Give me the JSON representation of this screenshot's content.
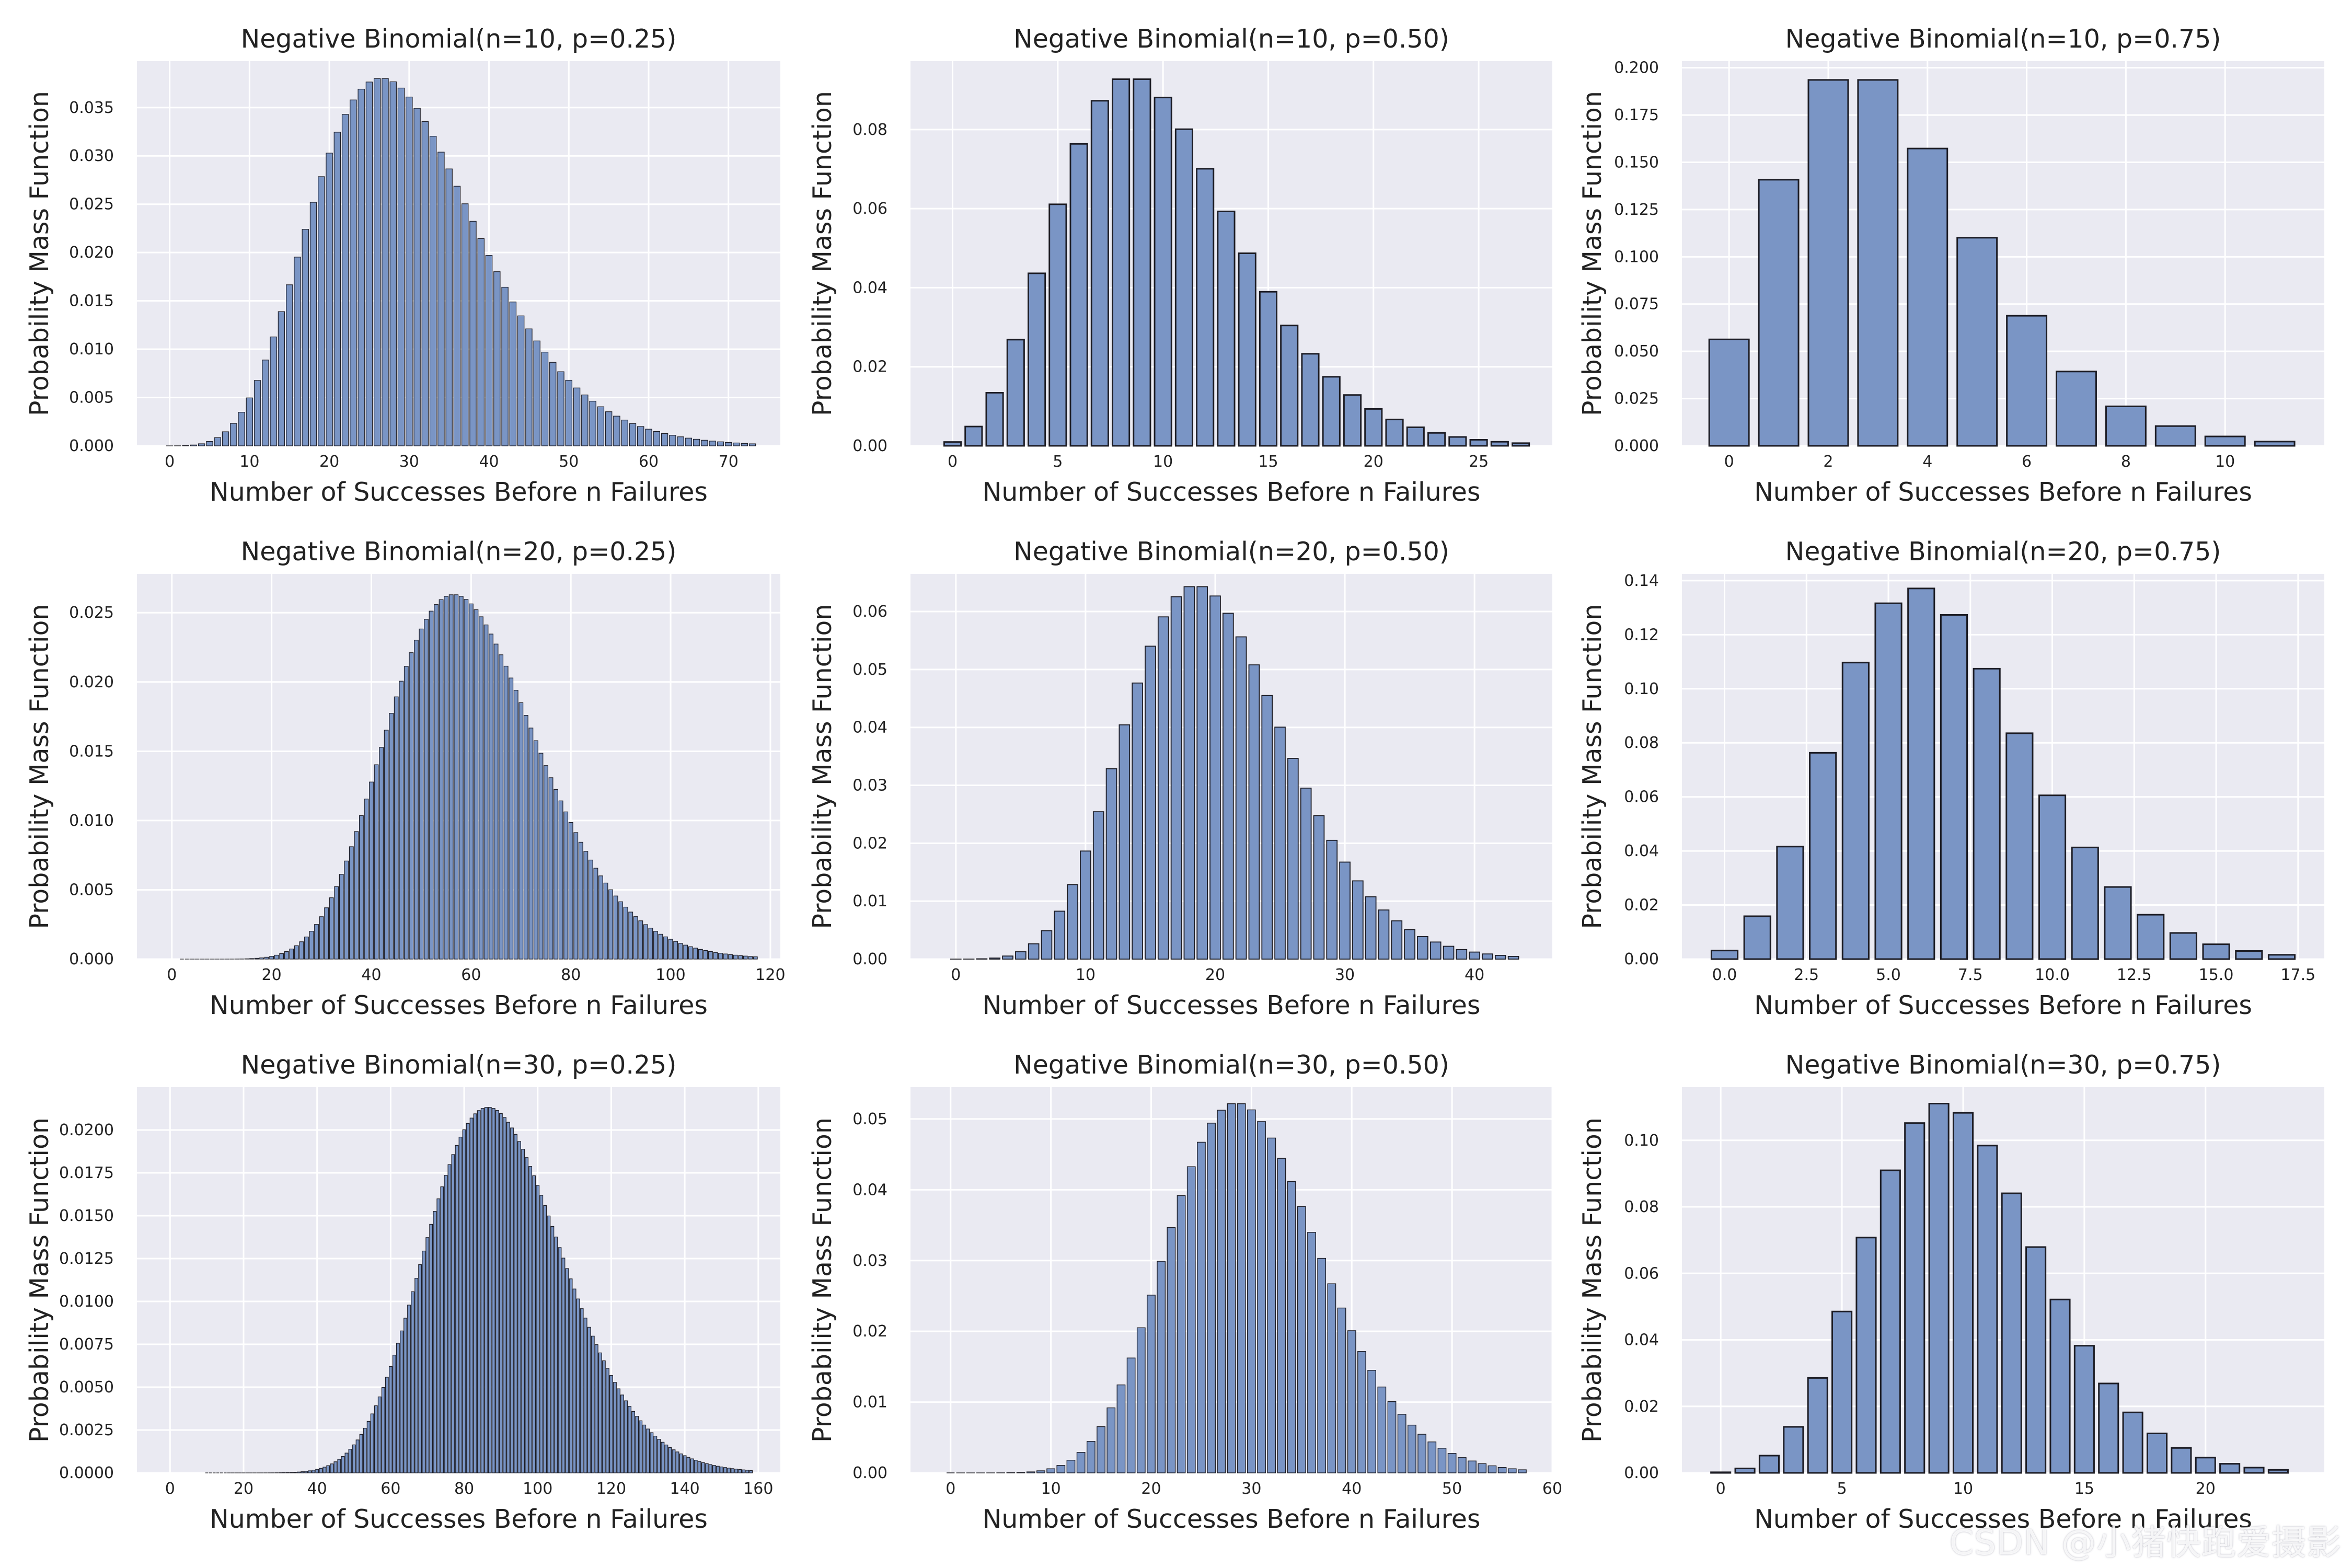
{
  "figure": {
    "watermark": "CSDN @小猪快跑爱摄影",
    "colors": {
      "background": "#eaeaf2",
      "grid": "#ffffff",
      "bar_fill": "#7793c4",
      "bar_edge": "#1c1c24"
    }
  },
  "chart_data": [
    {
      "type": "bar",
      "distribution": "negative_binomial",
      "n": 10,
      "p": 0.25,
      "kmax": 73,
      "title": "Negative Binomial(n=10, p=0.25)",
      "xlabel": "Number of Successes Before n Failures",
      "ylabel": "Probability Mass Function",
      "xlim": [
        -4.1,
        76.5
      ],
      "ylim": [
        0,
        0.0398
      ],
      "xticks": [
        0,
        10,
        20,
        30,
        40,
        50,
        60,
        70
      ],
      "xtick_labels": [
        "0",
        "10",
        "20",
        "30",
        "40",
        "50",
        "60",
        "70"
      ],
      "yticks": [
        0,
        0.005,
        0.01,
        0.015,
        0.02,
        0.025,
        0.03,
        0.035
      ],
      "ytick_labels": [
        "0.000",
        "0.005",
        "0.010",
        "0.015",
        "0.020",
        "0.025",
        "0.030",
        "0.035"
      ]
    },
    {
      "type": "bar",
      "distribution": "negative_binomial",
      "n": 10,
      "p": 0.5,
      "kmax": 27,
      "title": "Negative Binomial(n=10, p=0.50)",
      "xlabel": "Number of Successes Before n Failures",
      "ylabel": "Probability Mass Function",
      "xlim": [
        -2.0,
        28.5
      ],
      "ylim": [
        0,
        0.0973
      ],
      "xticks": [
        0,
        5,
        10,
        15,
        20,
        25
      ],
      "xtick_labels": [
        "0",
        "5",
        "10",
        "15",
        "20",
        "25"
      ],
      "yticks": [
        0,
        0.02,
        0.04,
        0.06,
        0.08
      ],
      "ytick_labels": [
        "0.00",
        "0.02",
        "0.04",
        "0.06",
        "0.08"
      ]
    },
    {
      "type": "bar",
      "distribution": "negative_binomial",
      "n": 10,
      "p": 0.75,
      "kmax": 11,
      "title": "Negative Binomial(n=10, p=0.75)",
      "xlabel": "Number of Successes Before n Failures",
      "ylabel": "Probability Mass Function",
      "xlim": [
        -0.95,
        12.0
      ],
      "ylim": [
        0,
        0.2035
      ],
      "xticks": [
        0,
        2,
        4,
        6,
        8,
        10
      ],
      "xtick_labels": [
        "0",
        "2",
        "4",
        "6",
        "8",
        "10"
      ],
      "yticks": [
        0,
        0.025,
        0.05,
        0.075,
        0.1,
        0.125,
        0.15,
        0.175,
        0.2
      ],
      "ytick_labels": [
        "0.000",
        "0.025",
        "0.050",
        "0.075",
        "0.100",
        "0.125",
        "0.150",
        "0.175",
        "0.200"
      ]
    },
    {
      "type": "bar",
      "distribution": "negative_binomial",
      "n": 20,
      "p": 0.25,
      "kmax": 117,
      "title": "Negative Binomial(n=20, p=0.25)",
      "xlabel": "Number of Successes Before n Failures",
      "ylabel": "Probability Mass Function",
      "xlim": [
        -7.0,
        122.0
      ],
      "ylim": [
        0,
        0.0278
      ],
      "xticks": [
        0,
        20,
        40,
        60,
        80,
        100,
        120
      ],
      "xtick_labels": [
        "0",
        "20",
        "40",
        "60",
        "80",
        "100",
        "120"
      ],
      "yticks": [
        0,
        0.005,
        0.01,
        0.015,
        0.02,
        0.025
      ],
      "ytick_labels": [
        "0.000",
        "0.005",
        "0.010",
        "0.015",
        "0.020",
        "0.025"
      ]
    },
    {
      "type": "bar",
      "distribution": "negative_binomial",
      "n": 20,
      "p": 0.5,
      "kmax": 43,
      "title": "Negative Binomial(n=20, p=0.50)",
      "xlabel": "Number of Successes Before n Failures",
      "ylabel": "Probability Mass Function",
      "xlim": [
        -3.5,
        46.0
      ],
      "ylim": [
        0,
        0.0665
      ],
      "xticks": [
        0,
        10,
        20,
        30,
        40
      ],
      "xtick_labels": [
        "0",
        "10",
        "20",
        "30",
        "40"
      ],
      "yticks": [
        0,
        0.01,
        0.02,
        0.03,
        0.04,
        0.05,
        0.06
      ],
      "ytick_labels": [
        "0.00",
        "0.01",
        "0.02",
        "0.03",
        "0.04",
        "0.05",
        "0.06"
      ]
    },
    {
      "type": "bar",
      "distribution": "negative_binomial",
      "n": 20,
      "p": 0.75,
      "kmax": 17,
      "title": "Negative Binomial(n=20, p=0.75)",
      "xlabel": "Number of Successes Before n Failures",
      "ylabel": "Probability Mass Function",
      "xlim": [
        -1.3,
        18.3
      ],
      "ylim": [
        0,
        0.1425
      ],
      "xticks": [
        0,
        2.5,
        5,
        7.5,
        10,
        12.5,
        15,
        17.5
      ],
      "xtick_labels": [
        "0.0",
        "2.5",
        "5.0",
        "7.5",
        "10.0",
        "12.5",
        "15.0",
        "17.5"
      ],
      "yticks": [
        0,
        0.02,
        0.04,
        0.06,
        0.08,
        0.1,
        0.12,
        0.14
      ],
      "ytick_labels": [
        "0.00",
        "0.02",
        "0.04",
        "0.06",
        "0.08",
        "0.10",
        "0.12",
        "0.14"
      ]
    },
    {
      "type": "bar",
      "distribution": "negative_binomial",
      "n": 30,
      "p": 0.25,
      "kmax": 158,
      "title": "Negative Binomial(n=30, p=0.25)",
      "xlabel": "Number of Successes Before n Failures",
      "ylabel": "Probability Mass Function",
      "xlim": [
        -9.0,
        166.0
      ],
      "ylim": [
        0,
        0.0225
      ],
      "xticks": [
        0,
        20,
        40,
        60,
        80,
        100,
        120,
        140,
        160
      ],
      "xtick_labels": [
        "0",
        "20",
        "40",
        "60",
        "80",
        "100",
        "120",
        "140",
        "160"
      ],
      "yticks": [
        0,
        0.0025,
        0.005,
        0.0075,
        0.01,
        0.0125,
        0.015,
        0.0175,
        0.02
      ],
      "ytick_labels": [
        "0.0000",
        "0.0025",
        "0.0050",
        "0.0075",
        "0.0100",
        "0.0125",
        "0.0150",
        "0.0175",
        "0.0200"
      ]
    },
    {
      "type": "bar",
      "distribution": "negative_binomial",
      "n": 30,
      "p": 0.5,
      "kmax": 57,
      "title": "Negative Binomial(n=30, p=0.50)",
      "xlabel": "Number of Successes Before n Failures",
      "ylabel": "Probability Mass Function",
      "xlim": [
        -4.0,
        60.0
      ],
      "ylim": [
        0,
        0.0545
      ],
      "xticks": [
        0,
        10,
        20,
        30,
        40,
        50,
        60
      ],
      "xtick_labels": [
        "0",
        "10",
        "20",
        "30",
        "40",
        "50",
        "60"
      ],
      "yticks": [
        0,
        0.01,
        0.02,
        0.03,
        0.04,
        0.05
      ],
      "ytick_labels": [
        "0.00",
        "0.01",
        "0.02",
        "0.03",
        "0.04",
        "0.05"
      ]
    },
    {
      "type": "bar",
      "distribution": "negative_binomial",
      "n": 30,
      "p": 0.75,
      "kmax": 23,
      "title": "Negative Binomial(n=30, p=0.75)",
      "xlabel": "Number of Successes Before n Failures",
      "ylabel": "Probability Mass Function",
      "xlim": [
        -1.6,
        24.9
      ],
      "ylim": [
        0,
        0.116
      ],
      "xticks": [
        0,
        5,
        10,
        15,
        20
      ],
      "xtick_labels": [
        "0",
        "5",
        "10",
        "15",
        "20"
      ],
      "yticks": [
        0,
        0.02,
        0.04,
        0.06,
        0.08,
        0.1
      ],
      "ytick_labels": [
        "0.00",
        "0.02",
        "0.04",
        "0.06",
        "0.08",
        "0.10"
      ]
    }
  ]
}
